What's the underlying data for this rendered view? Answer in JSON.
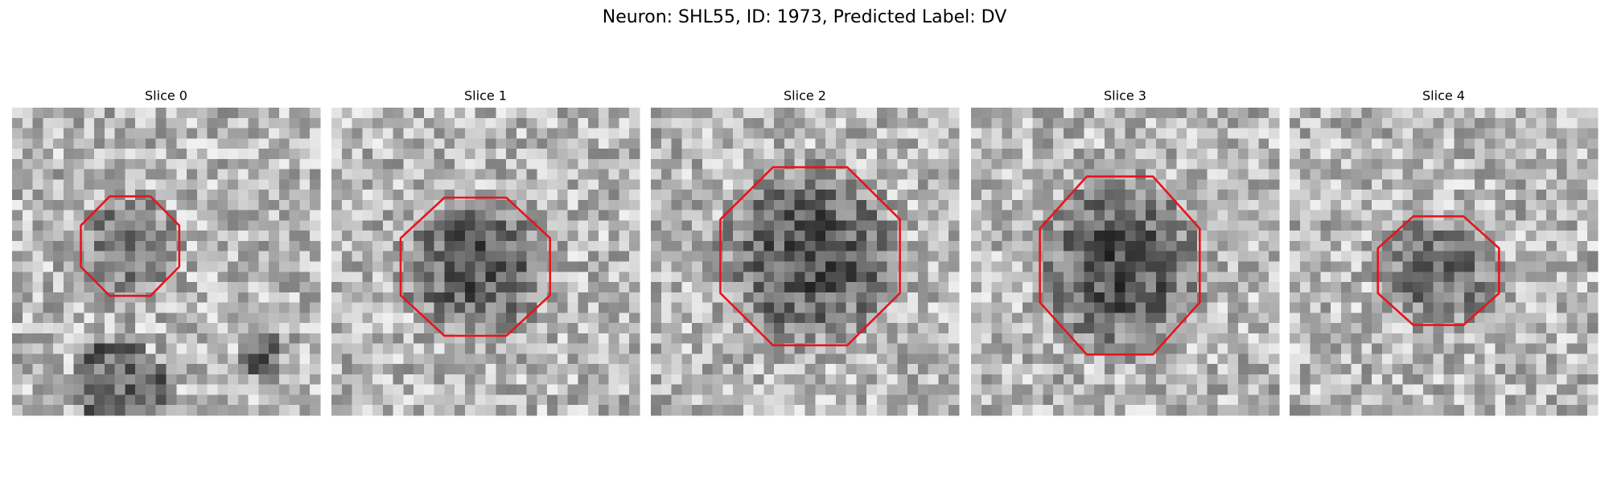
{
  "figure": {
    "title": "Neuron: SHL55, ID: 1973, Predicted Label: DV",
    "panels": [
      {
        "title": "Slice 0"
      },
      {
        "title": "Slice 1"
      },
      {
        "title": "Slice 2"
      },
      {
        "title": "Slice 3"
      },
      {
        "title": "Slice 4"
      }
    ]
  }
}
